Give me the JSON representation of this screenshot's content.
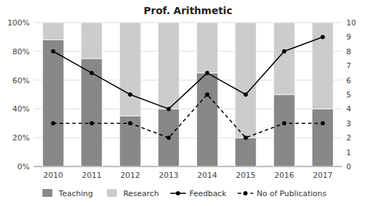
{
  "chart_data": {
    "type": "bar",
    "title": "Prof. Arithmetic",
    "categories": [
      "2010",
      "2011",
      "2012",
      "2013",
      "2014",
      "2015",
      "2016",
      "2017"
    ],
    "stacked": true,
    "series": [
      {
        "name": "Teaching",
        "color": "#888888",
        "values": [
          0.88,
          0.75,
          0.35,
          0.4,
          0.65,
          0.2,
          0.5,
          0.4
        ]
      },
      {
        "name": "Research",
        "color": "#cccccc",
        "values": [
          0.12,
          0.25,
          0.65,
          0.6,
          0.35,
          0.8,
          0.5,
          0.6
        ]
      },
      {
        "name": "Feedback",
        "type": "line",
        "axis": "y2",
        "color": "#000000",
        "marker": "circle",
        "line_style": "solid",
        "values": [
          8,
          6.5,
          5,
          4,
          6.5,
          5,
          8,
          9
        ]
      },
      {
        "name": "No of Publications",
        "type": "line",
        "axis": "y2",
        "color": "#000000",
        "marker": "circle",
        "line_style": "dashed",
        "values": [
          3,
          3,
          3,
          2,
          5,
          2,
          3,
          3
        ]
      }
    ],
    "ylim": [
      0,
      1
    ],
    "yticks": [
      {
        "value": 0.0,
        "label": "0%"
      },
      {
        "value": 0.2,
        "label": "20%"
      },
      {
        "value": 0.4,
        "label": "40%"
      },
      {
        "value": 0.6,
        "label": "60%"
      },
      {
        "value": 0.8,
        "label": "80%"
      },
      {
        "value": 1.0,
        "label": "100%"
      }
    ],
    "y2lim": [
      0,
      10
    ],
    "y2ticks": [
      0,
      1,
      2,
      3,
      4,
      5,
      6,
      7,
      8,
      9,
      10
    ],
    "grid": true,
    "legend": "bottom"
  }
}
